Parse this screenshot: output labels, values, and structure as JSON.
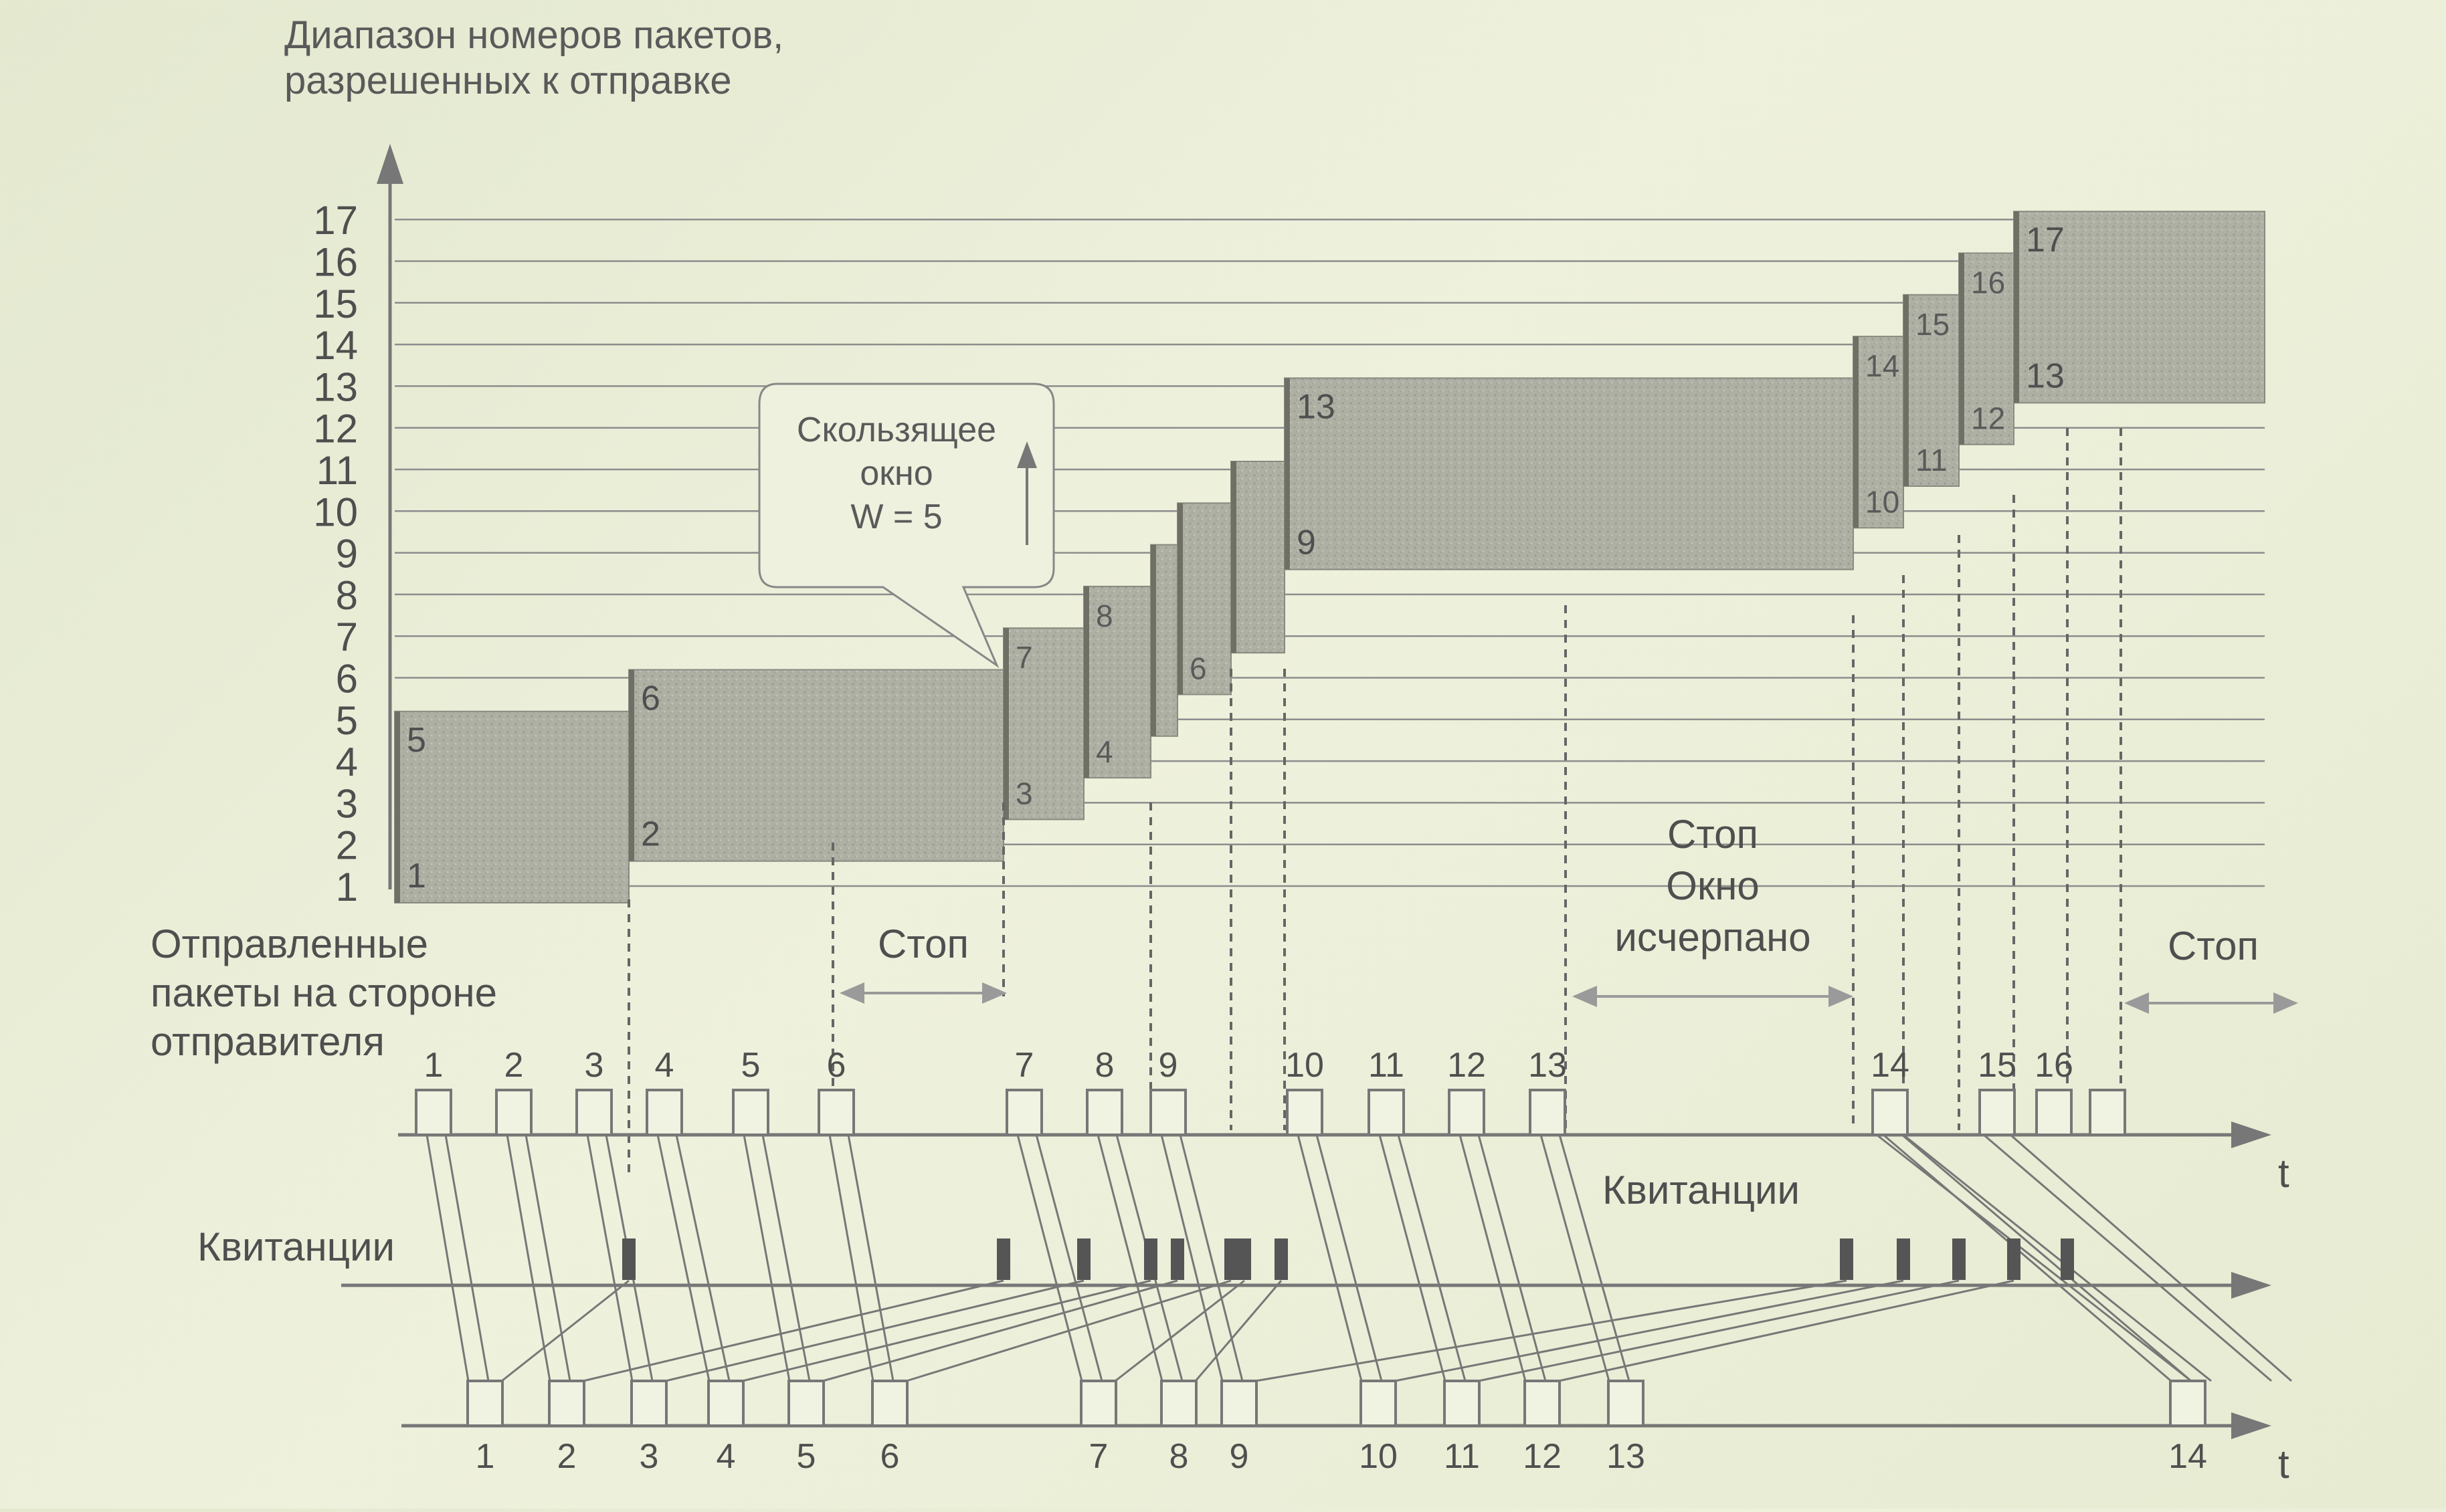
{
  "y_axis": {
    "label_lines": [
      "Диапазон номеров пакетов,",
      "разрешенных к отправке"
    ],
    "ticks": [
      "1",
      "2",
      "3",
      "4",
      "5",
      "6",
      "7",
      "8",
      "9",
      "10",
      "11",
      "12",
      "13",
      "14",
      "15",
      "16",
      "17"
    ]
  },
  "windows": [
    {
      "low": "1",
      "high": "5"
    },
    {
      "low": "2",
      "high": "6"
    },
    {
      "low": "3",
      "high": "7"
    },
    {
      "low": "4",
      "high": "8"
    },
    {
      "low": "",
      "high": ""
    },
    {
      "low": "6",
      "high": ""
    },
    {
      "low": "",
      "high": ""
    },
    {
      "low": "9",
      "high": "13"
    },
    {
      "low": "10",
      "high": "14"
    },
    {
      "low": "11",
      "high": "15"
    },
    {
      "low": "12",
      "high": "16"
    },
    {
      "low": "13",
      "high": "17"
    }
  ],
  "callout": {
    "lines": [
      "Скользящее",
      "окно",
      "W = 5"
    ]
  },
  "annotations": {
    "stop_1": "Стоп",
    "stop_window_lines": [
      "Стоп",
      "Окно",
      "исчерпано"
    ],
    "stop_3": "Стоп",
    "sent_label_lines": [
      "Отправленные",
      "пакеты на стороне",
      "отправителя"
    ],
    "acks_label_left": "Квитанции",
    "acks_label_right": "Квитанции",
    "time_label": "t"
  },
  "sent_packets": [
    "1",
    "2",
    "3",
    "4",
    "5",
    "6",
    "7",
    "8",
    "9",
    "10",
    "11",
    "12",
    "13",
    "14",
    "15",
    "16",
    ""
  ],
  "received_packets": [
    "1",
    "2",
    "3",
    "4",
    "5",
    "6",
    "7",
    "8",
    "9",
    "10",
    "11",
    "12",
    "13",
    "14"
  ]
}
